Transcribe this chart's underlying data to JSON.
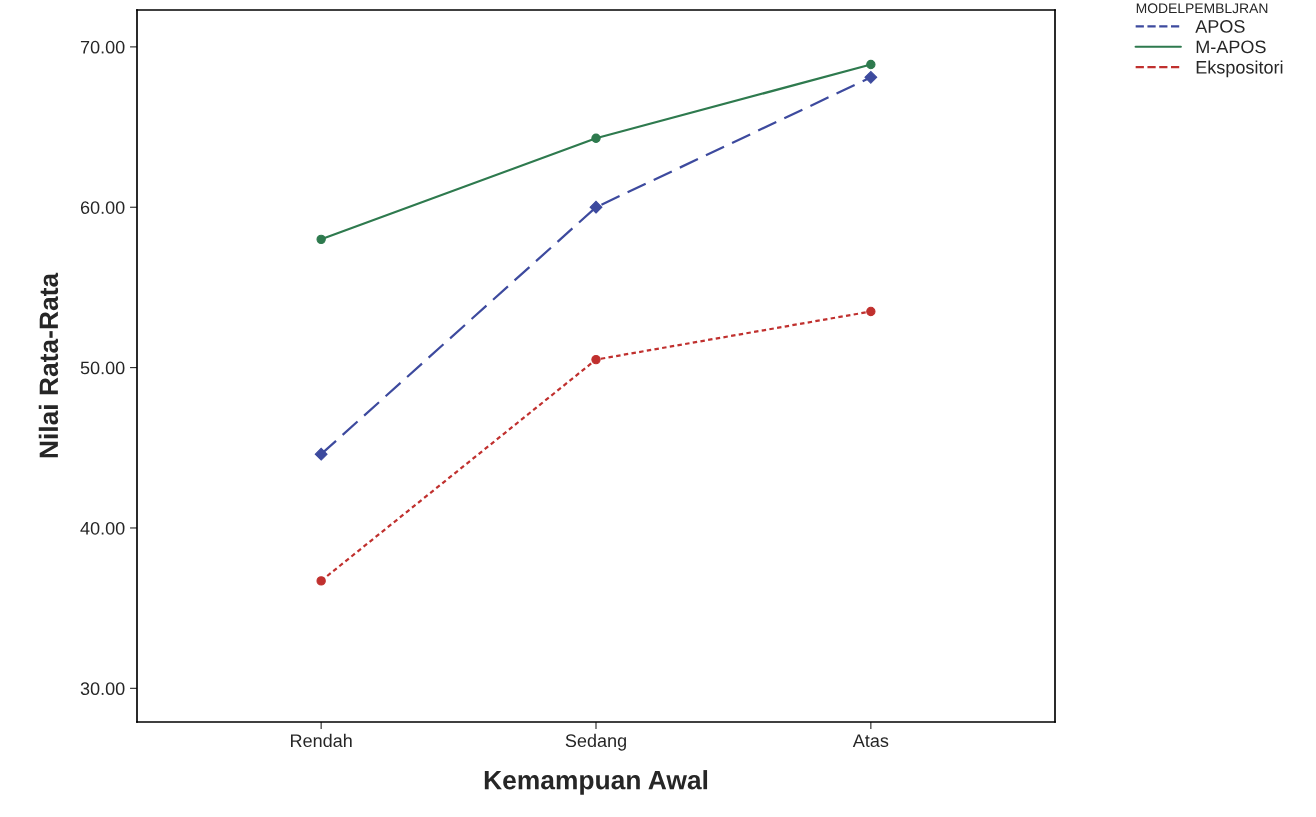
{
  "chart_data": {
    "type": "line",
    "xlabel": "Kemampuan Awal",
    "ylabel": "Nilai Rata-Rata",
    "categories": [
      "Rendah",
      "Sedang",
      "Atas"
    ],
    "series": [
      {
        "name": "APOS",
        "color": "#3d4a9e",
        "values": [
          44.6,
          60.0,
          68.1
        ],
        "line_style": "dashed",
        "marker": "diamond"
      },
      {
        "name": "M-APOS",
        "color": "#2e7a4e",
        "values": [
          58.0,
          64.3,
          68.9
        ],
        "line_style": "solid",
        "marker": "circle"
      },
      {
        "name": "Ekspositori",
        "color": "#c0302e",
        "values": [
          36.7,
          50.5,
          53.5
        ],
        "line_style": "dotted",
        "marker": "circle"
      }
    ],
    "legend_title": "MODELPEMBLJRAN",
    "legend": "top right",
    "ylim": [
      27.9,
      72.3
    ],
    "yticks": [
      {
        "value": 30,
        "label": "30.00"
      },
      {
        "value": 40,
        "label": "40.00"
      },
      {
        "value": 50,
        "label": "50.00"
      },
      {
        "value": 60,
        "label": "60.00"
      },
      {
        "value": 70,
        "label": "70.00"
      }
    ],
    "grid": false
  }
}
